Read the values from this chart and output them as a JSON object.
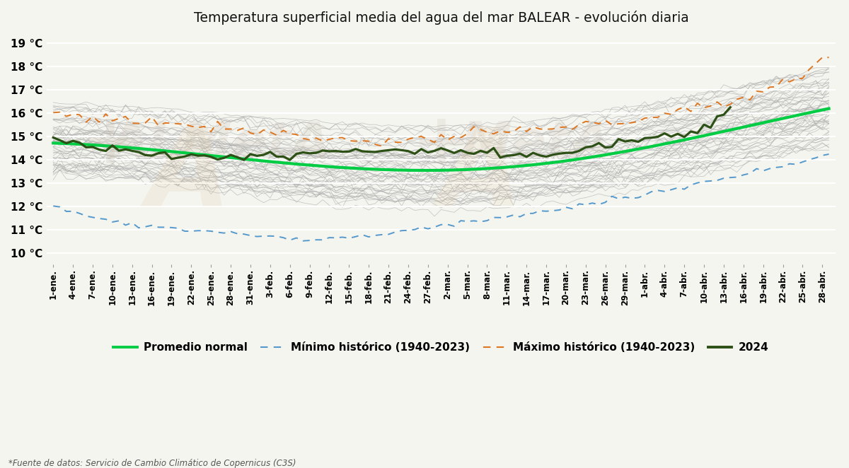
{
  "title": "Temperatura superficial media del agua del mar BALEAR - evolución diaria",
  "yticks": [
    10,
    11,
    12,
    13,
    14,
    15,
    16,
    17,
    18,
    19
  ],
  "ytick_labels": [
    "10 °C",
    "11 °C",
    "12 °C",
    "13 °C",
    "14 °C",
    "15 °C",
    "16 °C",
    "17 °C",
    "18 °C",
    "19 °C"
  ],
  "ylim": [
    9.5,
    19.5
  ],
  "n_days": 119,
  "background_color": "#f5f5f0",
  "grid_color": "#ffffff",
  "source_text": "*Fuente de datos: Servicio de Cambio Climático de Copernicus (C3S)",
  "avg_normal_color": "#00cc44",
  "min_hist_color": "#5599cc",
  "max_hist_color": "#dd7722",
  "line2024_color": "#2d5016",
  "gray_line_color": "#aaaaaa",
  "watermark_color1": "#c8c0b0",
  "watermark_color2": "#e0c8a0",
  "xtick_labels": [
    "1-ene.",
    "4-ene.",
    "7-ene.",
    "10-ene.",
    "13-ene.",
    "16-ene.",
    "19-ene.",
    "22-ene.",
    "25-ene.",
    "28-ene.",
    "31-ene.",
    "3-feb.",
    "6-feb.",
    "9-feb.",
    "12-feb.",
    "15-feb.",
    "18-feb.",
    "21-feb.",
    "24-feb.",
    "27-feb.",
    "2-mar.",
    "5-mar.",
    "8-mar.",
    "11-mar.",
    "14-mar.",
    "17-mar.",
    "20-mar.",
    "23-mar.",
    "26-mar.",
    "29-mar.",
    "1-abr.",
    "4-abr.",
    "7-abr.",
    "10-abr.",
    "13-abr.",
    "16-abr.",
    "19-abr.",
    "22-abr.",
    "25-abr.",
    "28-abr."
  ]
}
